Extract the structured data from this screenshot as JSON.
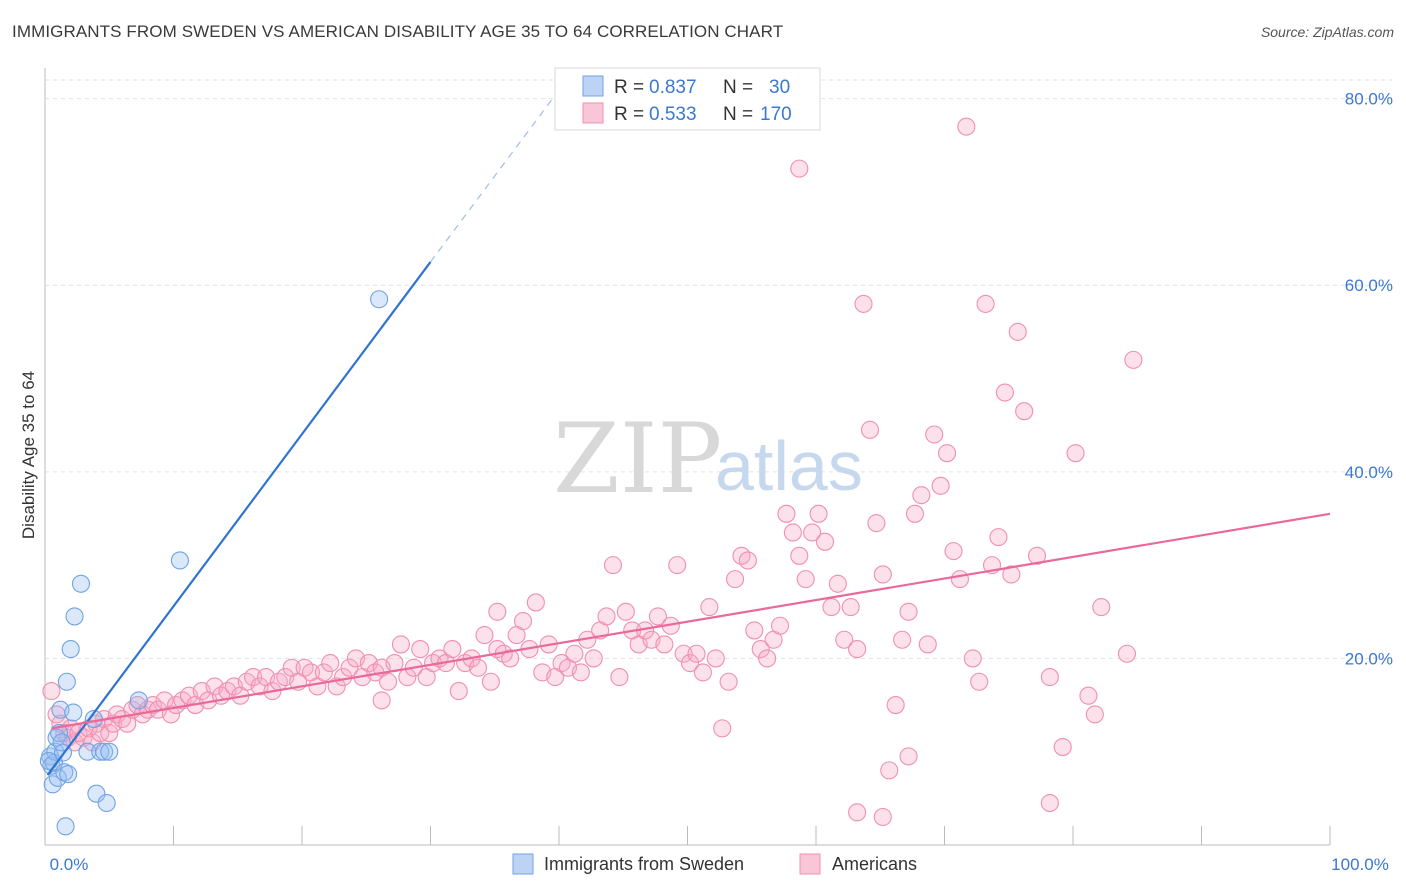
{
  "title": "IMMIGRANTS FROM SWEDEN VS AMERICAN DISABILITY AGE 35 TO 64 CORRELATION CHART",
  "source": "Source: ZipAtlas.com",
  "watermark": {
    "zip": "ZIP",
    "atlas": "atlas"
  },
  "colors": {
    "blue": "#6fa3e6",
    "blue_line": "#2f74d0",
    "pink": "#f08fb0",
    "pink_line": "#e9699a",
    "tick_text": "#3b78d1",
    "grid": "#dde2ea"
  },
  "legend": {
    "rows": [
      {
        "r_label": "R =",
        "r_value": "0.837",
        "n_label": "N =",
        "n_value": "30"
      },
      {
        "r_label": "R =",
        "r_value": "0.533",
        "n_label": "N =",
        "n_value": "170"
      }
    ]
  },
  "bottom_legend": [
    "Immigrants from Sweden",
    "Americans"
  ],
  "chart_data": {
    "type": "scatter",
    "xlabel": "",
    "ylabel": "Disability Age 35 to 64",
    "xlim": [
      0,
      100
    ],
    "ylim": [
      0,
      82
    ],
    "x_tick_labels": [
      "0.0%",
      "100.0%"
    ],
    "y_ticks": [
      20,
      40,
      60,
      80
    ],
    "y_tick_labels": [
      "20.0%",
      "40.0%",
      "60.0%",
      "80.0%"
    ],
    "grid": true,
    "legend_position": "top-center",
    "series": [
      {
        "name": "Immigrants from Sweden",
        "color": "#6fa3e6",
        "trend": {
          "x0": 0.2,
          "y0": 7.5,
          "x1": 30,
          "y1": 62.5,
          "dash_to_x": 39.5,
          "dash_to_y": 80
        },
        "points": [
          [
            0.4,
            9.5
          ],
          [
            0.5,
            8.5
          ],
          [
            0.6,
            6.5
          ],
          [
            0.7,
            8.8
          ],
          [
            0.8,
            10
          ],
          [
            0.9,
            11.5
          ],
          [
            1.0,
            7.2
          ],
          [
            1.1,
            12
          ],
          [
            1.2,
            14.5
          ],
          [
            1.4,
            9.9
          ],
          [
            1.5,
            7.8
          ],
          [
            1.6,
            2
          ],
          [
            1.7,
            17.5
          ],
          [
            1.8,
            7.6
          ],
          [
            2.0,
            21
          ],
          [
            2.2,
            14.2
          ],
          [
            2.3,
            24.5
          ],
          [
            2.8,
            28
          ],
          [
            3.3,
            10
          ],
          [
            3.8,
            13.5
          ],
          [
            4.0,
            5.5
          ],
          [
            4.3,
            10
          ],
          [
            4.6,
            10
          ],
          [
            4.8,
            4.5
          ],
          [
            5.0,
            10
          ],
          [
            7.3,
            15.5
          ],
          [
            10.5,
            30.5
          ],
          [
            26,
            58.5
          ],
          [
            1.3,
            11
          ],
          [
            0.3,
            9
          ]
        ]
      },
      {
        "name": "Americans",
        "color": "#f08fb0",
        "trend": {
          "x0": 0.5,
          "y0": 12.5,
          "x1": 100,
          "y1": 35.5
        },
        "points": [
          [
            0.5,
            16.5
          ],
          [
            0.9,
            14
          ],
          [
            1.2,
            13
          ],
          [
            1.5,
            12
          ],
          [
            1.8,
            11.5
          ],
          [
            2.0,
            12.5
          ],
          [
            2.3,
            11
          ],
          [
            2.6,
            12
          ],
          [
            3.0,
            11.5
          ],
          [
            3.4,
            12.5
          ],
          [
            3.7,
            11
          ],
          [
            4.0,
            13
          ],
          [
            4.3,
            12
          ],
          [
            4.6,
            13.5
          ],
          [
            5.0,
            12
          ],
          [
            5.3,
            13
          ],
          [
            5.6,
            14
          ],
          [
            6.0,
            13.5
          ],
          [
            6.4,
            13
          ],
          [
            6.8,
            14.5
          ],
          [
            7.2,
            15
          ],
          [
            7.6,
            14
          ],
          [
            8.0,
            14.5
          ],
          [
            8.4,
            15
          ],
          [
            8.8,
            14.5
          ],
          [
            9.3,
            15.5
          ],
          [
            9.8,
            14
          ],
          [
            10.2,
            15
          ],
          [
            10.7,
            15.5
          ],
          [
            11.2,
            16
          ],
          [
            11.7,
            15
          ],
          [
            12.2,
            16.5
          ],
          [
            12.7,
            15.5
          ],
          [
            13.2,
            17
          ],
          [
            13.7,
            16
          ],
          [
            14.2,
            16.5
          ],
          [
            14.7,
            17
          ],
          [
            15.2,
            16
          ],
          [
            15.7,
            17.5
          ],
          [
            16.2,
            18
          ],
          [
            16.7,
            17
          ],
          [
            17.2,
            18
          ],
          [
            17.7,
            16.5
          ],
          [
            18.2,
            17.5
          ],
          [
            18.7,
            18
          ],
          [
            19.2,
            19
          ],
          [
            19.7,
            17.5
          ],
          [
            20.2,
            19
          ],
          [
            20.7,
            18.5
          ],
          [
            21.2,
            17
          ],
          [
            21.7,
            18.5
          ],
          [
            22.2,
            19.5
          ],
          [
            22.7,
            17
          ],
          [
            23.2,
            18
          ],
          [
            23.7,
            19
          ],
          [
            24.2,
            20
          ],
          [
            24.7,
            18
          ],
          [
            25.2,
            19.5
          ],
          [
            25.7,
            18.5
          ],
          [
            26.2,
            19
          ],
          [
            26.7,
            17.5
          ],
          [
            27.2,
            19.5
          ],
          [
            27.7,
            21.5
          ],
          [
            28.2,
            18
          ],
          [
            28.7,
            19
          ],
          [
            29.2,
            21
          ],
          [
            29.7,
            18
          ],
          [
            30.2,
            19.5
          ],
          [
            30.7,
            20
          ],
          [
            31.2,
            19.5
          ],
          [
            31.7,
            21
          ],
          [
            32.2,
            16.5
          ],
          [
            32.7,
            19.5
          ],
          [
            33.2,
            20
          ],
          [
            33.7,
            19
          ],
          [
            34.2,
            22.5
          ],
          [
            34.7,
            17.5
          ],
          [
            35.2,
            21
          ],
          [
            35.7,
            20.5
          ],
          [
            36.2,
            20
          ],
          [
            36.7,
            22.5
          ],
          [
            37.2,
            24
          ],
          [
            37.7,
            21
          ],
          [
            38.2,
            26
          ],
          [
            38.7,
            18.5
          ],
          [
            39.2,
            21.5
          ],
          [
            39.7,
            18
          ],
          [
            40.2,
            19.5
          ],
          [
            40.7,
            19
          ],
          [
            41.2,
            20.5
          ],
          [
            41.7,
            18.5
          ],
          [
            42.2,
            22
          ],
          [
            42.7,
            20
          ],
          [
            43.2,
            23
          ],
          [
            43.7,
            24.5
          ],
          [
            44.2,
            30
          ],
          [
            44.7,
            18
          ],
          [
            45.2,
            25
          ],
          [
            45.7,
            23
          ],
          [
            46.2,
            21.5
          ],
          [
            46.7,
            23
          ],
          [
            47.2,
            22
          ],
          [
            47.7,
            24.5
          ],
          [
            48.2,
            21.5
          ],
          [
            48.7,
            23.5
          ],
          [
            49.2,
            30
          ],
          [
            49.7,
            20.5
          ],
          [
            50.2,
            19.5
          ],
          [
            50.7,
            20.5
          ],
          [
            51.2,
            18.5
          ],
          [
            51.7,
            25.5
          ],
          [
            52.2,
            20
          ],
          [
            52.7,
            12.5
          ],
          [
            53.2,
            17.5
          ],
          [
            53.7,
            28.5
          ],
          [
            54.2,
            31
          ],
          [
            54.7,
            30.5
          ],
          [
            55.2,
            23
          ],
          [
            55.7,
            21
          ],
          [
            56.2,
            20
          ],
          [
            56.7,
            22
          ],
          [
            57.2,
            23.5
          ],
          [
            57.7,
            35.5
          ],
          [
            58.2,
            33.5
          ],
          [
            58.7,
            31
          ],
          [
            59.2,
            28.5
          ],
          [
            59.7,
            33.5
          ],
          [
            60.2,
            35.5
          ],
          [
            60.7,
            32.5
          ],
          [
            61.2,
            25.5
          ],
          [
            61.7,
            28
          ],
          [
            62.2,
            22
          ],
          [
            62.7,
            25.5
          ],
          [
            63.2,
            21
          ],
          [
            63.7,
            58
          ],
          [
            64.2,
            44.5
          ],
          [
            64.7,
            34.5
          ],
          [
            65.2,
            29
          ],
          [
            65.7,
            8
          ],
          [
            66.2,
            15
          ],
          [
            66.7,
            22
          ],
          [
            67.2,
            25
          ],
          [
            67.7,
            35.5
          ],
          [
            68.2,
            37.5
          ],
          [
            68.7,
            21.5
          ],
          [
            69.2,
            44
          ],
          [
            69.7,
            38.5
          ],
          [
            70.2,
            42
          ],
          [
            70.7,
            31.5
          ],
          [
            71.2,
            28.5
          ],
          [
            71.7,
            77
          ],
          [
            72.2,
            20
          ],
          [
            72.7,
            17.5
          ],
          [
            73.2,
            58
          ],
          [
            73.7,
            30
          ],
          [
            74.2,
            33
          ],
          [
            74.7,
            48.5
          ],
          [
            75.2,
            29
          ],
          [
            75.7,
            55
          ],
          [
            76.2,
            46.5
          ],
          [
            77.2,
            31
          ],
          [
            78.2,
            18
          ],
          [
            79.2,
            10.5
          ],
          [
            80.2,
            42
          ],
          [
            81.2,
            16
          ],
          [
            81.7,
            14
          ],
          [
            82.2,
            25.5
          ],
          [
            84.2,
            20.5
          ],
          [
            84.7,
            52
          ],
          [
            58.7,
            72.5
          ],
          [
            63.2,
            3.5
          ],
          [
            65.2,
            3
          ],
          [
            67.2,
            9.5
          ],
          [
            78.2,
            4.5
          ],
          [
            35.2,
            25
          ],
          [
            26.2,
            15.5
          ]
        ]
      }
    ]
  }
}
